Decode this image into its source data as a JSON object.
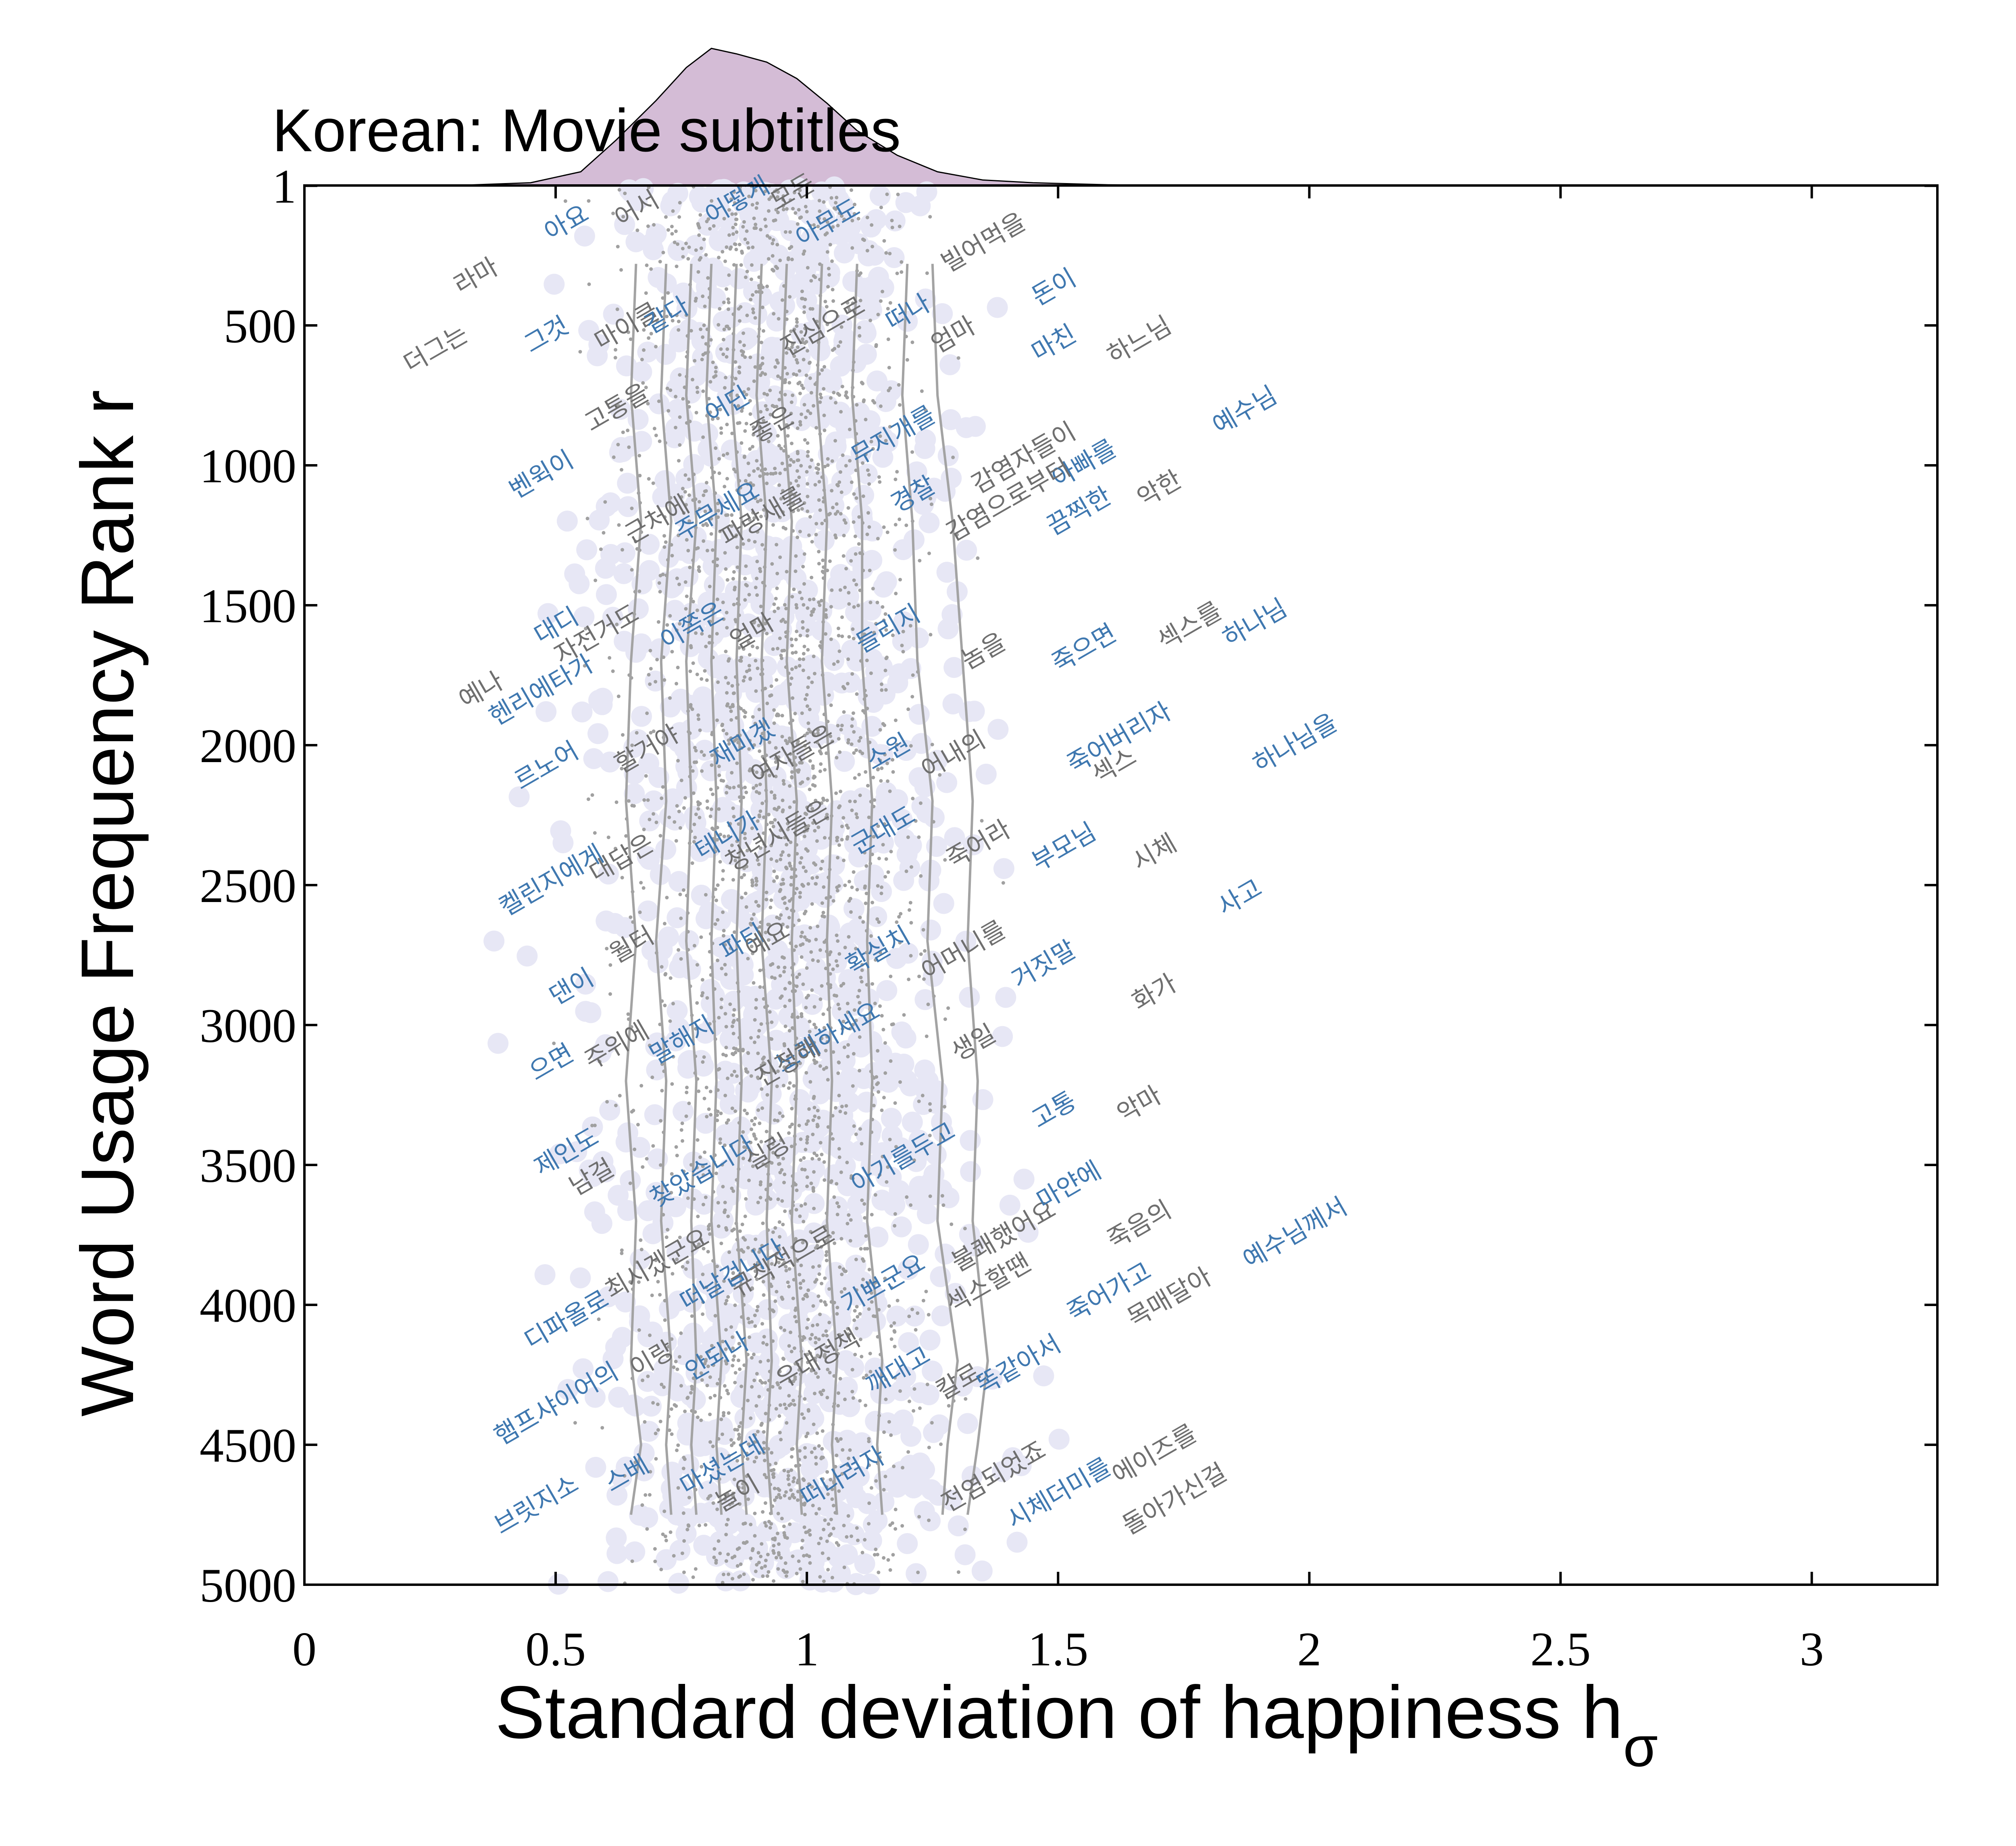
{
  "chart_data": {
    "type": "scatter",
    "title": "Korean: Movie subtitles",
    "xlabel": "Standard deviation of happiness h",
    "xlabel_subscript": "σ",
    "ylabel": "Word Usage Frequency Rank r",
    "xlim": [
      0,
      3.25
    ],
    "ylim": [
      0,
      5000
    ],
    "y_inverted": true,
    "x_ticks": [
      0,
      0.5,
      1,
      1.5,
      2,
      2.5,
      3
    ],
    "x_tick_labels": [
      "0",
      "0.5",
      "1",
      "1.5",
      "2",
      "2.5",
      "3"
    ],
    "y_ticks": [
      1,
      500,
      1000,
      1500,
      2000,
      2500,
      3000,
      3500,
      4000,
      4500,
      5000
    ],
    "y_tick_labels": [
      "1",
      "500",
      "1000",
      "1500",
      "2000",
      "2500",
      "3000",
      "3500",
      "4000",
      "4500",
      "5000"
    ],
    "grid": false,
    "colors": {
      "word_blue": "#3f78b0",
      "word_gray": "#6f6f6f",
      "halo": "#e7e7f5",
      "dot": "#a0a0a0",
      "contour": "#a3a3a3",
      "kde_fill": "#d4bcd6",
      "axis": "#000000"
    },
    "marginal_distribution": {
      "x": [
        0.3,
        0.45,
        0.55,
        0.62,
        0.7,
        0.76,
        0.81,
        0.86,
        0.92,
        0.98,
        1.04,
        1.1,
        1.18,
        1.26,
        1.35,
        1.45,
        1.6,
        1.8
      ],
      "density": [
        0.0,
        0.02,
        0.1,
        0.33,
        0.62,
        0.86,
        1.0,
        0.96,
        0.9,
        0.78,
        0.6,
        0.4,
        0.22,
        0.1,
        0.04,
        0.02,
        0.005,
        0.0
      ]
    },
    "contours": [
      {
        "x": [
          0.66,
          0.65,
          0.67,
          0.65,
          0.64,
          0.66,
          0.64,
          0.66,
          0.65,
          0.67,
          0.65
        ],
        "r": [
          280,
          750,
          1200,
          1700,
          2200,
          2700,
          3200,
          3700,
          4200,
          4500,
          4750
        ]
      },
      {
        "x": [
          0.72,
          0.71,
          0.73,
          0.71,
          0.72,
          0.7,
          0.72,
          0.71,
          0.73,
          0.72,
          0.73
        ],
        "r": [
          280,
          750,
          1200,
          1700,
          2200,
          2700,
          3200,
          3700,
          4200,
          4500,
          4750
        ]
      },
      {
        "x": [
          0.77,
          0.76,
          0.78,
          0.76,
          0.77,
          0.76,
          0.78,
          0.77,
          0.78,
          0.77,
          0.78
        ],
        "r": [
          280,
          750,
          1200,
          1700,
          2200,
          2700,
          3200,
          3700,
          4200,
          4500,
          4750
        ]
      },
      {
        "x": [
          0.81,
          0.8,
          0.82,
          0.81,
          0.82,
          0.81,
          0.82,
          0.81,
          0.83,
          0.82,
          0.83
        ],
        "r": [
          280,
          750,
          1200,
          1700,
          2200,
          2700,
          3200,
          3700,
          4200,
          4500,
          4750
        ]
      },
      {
        "x": [
          0.86,
          0.85,
          0.87,
          0.86,
          0.87,
          0.86,
          0.87,
          0.86,
          0.88,
          0.87,
          0.88
        ],
        "r": [
          280,
          750,
          1200,
          1700,
          2200,
          2700,
          3200,
          3700,
          4200,
          4500,
          4750
        ]
      },
      {
        "x": [
          0.91,
          0.9,
          0.92,
          0.91,
          0.92,
          0.91,
          0.93,
          0.92,
          0.93,
          0.92,
          0.93
        ],
        "r": [
          280,
          750,
          1200,
          1700,
          2200,
          2700,
          3200,
          3700,
          4200,
          4500,
          4750
        ]
      },
      {
        "x": [
          0.96,
          0.95,
          0.97,
          0.96,
          0.98,
          0.97,
          0.98,
          0.97,
          0.99,
          0.98,
          0.99
        ],
        "r": [
          280,
          750,
          1200,
          1700,
          2200,
          2700,
          3200,
          3700,
          4200,
          4500,
          4750
        ]
      },
      {
        "x": [
          1.03,
          1.02,
          1.04,
          1.03,
          1.05,
          1.04,
          1.05,
          1.04,
          1.06,
          1.05,
          1.06
        ],
        "r": [
          280,
          750,
          1200,
          1700,
          2200,
          2700,
          3200,
          3700,
          4200,
          4500,
          4750
        ]
      },
      {
        "x": [
          1.1,
          1.09,
          1.11,
          1.11,
          1.13,
          1.12,
          1.13,
          1.12,
          1.15,
          1.14,
          1.15
        ],
        "r": [
          280,
          750,
          1200,
          1700,
          2200,
          2700,
          3200,
          3700,
          4200,
          4500,
          4750
        ]
      },
      {
        "x": [
          1.2,
          1.19,
          1.21,
          1.22,
          1.25,
          1.24,
          1.27,
          1.26,
          1.3,
          1.28,
          1.27
        ],
        "r": [
          280,
          750,
          1200,
          1700,
          2200,
          2700,
          3200,
          3700,
          4200,
          4500,
          4750
        ]
      },
      {
        "x": [
          1.25,
          1.26,
          1.29,
          1.31,
          1.33,
          1.32,
          1.34,
          1.33,
          1.36,
          1.34,
          1.32
        ],
        "r": [
          280,
          750,
          1200,
          1700,
          2200,
          2700,
          3200,
          3700,
          4200,
          4500,
          4750
        ]
      }
    ],
    "words": [
      {
        "text": "아요",
        "x": 0.53,
        "r": 160,
        "color": "blue"
      },
      {
        "text": "어서",
        "x": 0.67,
        "r": 110,
        "color": "gray"
      },
      {
        "text": "어떻게",
        "x": 0.87,
        "r": 80,
        "color": "blue"
      },
      {
        "text": "모든",
        "x": 0.98,
        "r": 50,
        "color": "gray"
      },
      {
        "text": "아무도",
        "x": 1.05,
        "r": 160,
        "color": "blue"
      },
      {
        "text": "빌어먹을",
        "x": 1.36,
        "r": 230,
        "color": "gray"
      },
      {
        "text": "라마",
        "x": 0.35,
        "r": 350,
        "color": "gray"
      },
      {
        "text": "돈이",
        "x": 1.5,
        "r": 390,
        "color": "blue"
      },
      {
        "text": "더그는",
        "x": 0.27,
        "r": 610,
        "color": "gray"
      },
      {
        "text": "그것",
        "x": 0.49,
        "r": 560,
        "color": "blue"
      },
      {
        "text": "마이클",
        "x": 0.65,
        "r": 530,
        "color": "gray"
      },
      {
        "text": "같다",
        "x": 0.73,
        "r": 490,
        "color": "blue"
      },
      {
        "text": "진심으로",
        "x": 1.04,
        "r": 530,
        "color": "gray"
      },
      {
        "text": "떠나",
        "x": 1.21,
        "r": 480,
        "color": "blue"
      },
      {
        "text": "엄마",
        "x": 1.3,
        "r": 560,
        "color": "gray"
      },
      {
        "text": "마친",
        "x": 1.5,
        "r": 590,
        "color": "blue"
      },
      {
        "text": "하느님",
        "x": 1.67,
        "r": 580,
        "color": "gray"
      },
      {
        "text": "예수님",
        "x": 1.88,
        "r": 830,
        "color": "blue"
      },
      {
        "text": "고통을",
        "x": 0.63,
        "r": 820,
        "color": "gray"
      },
      {
        "text": "어딘",
        "x": 0.85,
        "r": 810,
        "color": "blue"
      },
      {
        "text": "좋은",
        "x": 0.94,
        "r": 880,
        "color": "gray"
      },
      {
        "text": "무지개를",
        "x": 1.18,
        "r": 920,
        "color": "blue"
      },
      {
        "text": "감염자들이",
        "x": 1.44,
        "r": 1000,
        "color": "gray"
      },
      {
        "text": "아빠를",
        "x": 1.56,
        "r": 1020,
        "color": "blue"
      },
      {
        "text": "벤윅이",
        "x": 0.48,
        "r": 1060,
        "color": "blue"
      },
      {
        "text": "경찰",
        "x": 1.22,
        "r": 1130,
        "color": "blue"
      },
      {
        "text": "감염으로부터",
        "x": 1.41,
        "r": 1150,
        "color": "gray"
      },
      {
        "text": "끔찍한",
        "x": 1.55,
        "r": 1190,
        "color": "blue"
      },
      {
        "text": "악한",
        "x": 1.71,
        "r": 1110,
        "color": "gray"
      },
      {
        "text": "근처에",
        "x": 0.71,
        "r": 1220,
        "color": "gray"
      },
      {
        "text": "주무세요",
        "x": 0.83,
        "r": 1190,
        "color": "blue"
      },
      {
        "text": "파랑새를",
        "x": 0.92,
        "r": 1210,
        "color": "gray"
      },
      {
        "text": "대디",
        "x": 0.51,
        "r": 1600,
        "color": "blue"
      },
      {
        "text": "자전거도",
        "x": 0.59,
        "r": 1630,
        "color": "gray"
      },
      {
        "text": "이쪽은",
        "x": 0.78,
        "r": 1600,
        "color": "blue"
      },
      {
        "text": "얼마",
        "x": 0.9,
        "r": 1620,
        "color": "gray"
      },
      {
        "text": "들리지",
        "x": 1.17,
        "r": 1610,
        "color": "blue"
      },
      {
        "text": "놈을",
        "x": 1.36,
        "r": 1690,
        "color": "gray"
      },
      {
        "text": "죽으면",
        "x": 1.56,
        "r": 1680,
        "color": "blue"
      },
      {
        "text": "섹스를",
        "x": 1.77,
        "r": 1600,
        "color": "gray"
      },
      {
        "text": "하나님",
        "x": 1.9,
        "r": 1590,
        "color": "blue"
      },
      {
        "text": "예나",
        "x": 0.36,
        "r": 1830,
        "color": "gray"
      },
      {
        "text": "헨리에타가",
        "x": 0.48,
        "r": 1830,
        "color": "blue"
      },
      {
        "text": "할거야",
        "x": 0.69,
        "r": 2040,
        "color": "gray"
      },
      {
        "text": "재미겠",
        "x": 0.88,
        "r": 2020,
        "color": "blue"
      },
      {
        "text": "여자들은",
        "x": 0.98,
        "r": 2060,
        "color": "gray"
      },
      {
        "text": "소원",
        "x": 1.17,
        "r": 2050,
        "color": "blue"
      },
      {
        "text": "어내의",
        "x": 1.3,
        "r": 2060,
        "color": "gray"
      },
      {
        "text": "죽어버리자",
        "x": 1.63,
        "r": 2000,
        "color": "blue"
      },
      {
        "text": "섹스",
        "x": 1.62,
        "r": 2100,
        "color": "gray"
      },
      {
        "text": "하나님을",
        "x": 1.98,
        "r": 2020,
        "color": "blue"
      },
      {
        "text": "르노어",
        "x": 0.49,
        "r": 2100,
        "color": "blue"
      },
      {
        "text": "테니가",
        "x": 0.85,
        "r": 2350,
        "color": "blue"
      },
      {
        "text": "청년시들은",
        "x": 0.95,
        "r": 2350,
        "color": "gray"
      },
      {
        "text": "군대도",
        "x": 1.16,
        "r": 2330,
        "color": "blue"
      },
      {
        "text": "죽어라",
        "x": 1.35,
        "r": 2380,
        "color": "gray"
      },
      {
        "text": "부모님",
        "x": 1.52,
        "r": 2390,
        "color": "blue"
      },
      {
        "text": "시체",
        "x": 1.7,
        "r": 2410,
        "color": "gray"
      },
      {
        "text": "켈린지에게",
        "x": 0.5,
        "r": 2510,
        "color": "blue"
      },
      {
        "text": "대답은",
        "x": 0.64,
        "r": 2430,
        "color": "gray"
      },
      {
        "text": "사고",
        "x": 1.87,
        "r": 2570,
        "color": "blue"
      },
      {
        "text": "월터",
        "x": 0.66,
        "r": 2740,
        "color": "gray"
      },
      {
        "text": "파티",
        "x": 0.88,
        "r": 2730,
        "color": "blue"
      },
      {
        "text": "예요",
        "x": 0.93,
        "r": 2720,
        "color": "gray"
      },
      {
        "text": "확실치",
        "x": 1.15,
        "r": 2760,
        "color": "blue"
      },
      {
        "text": "어머니를",
        "x": 1.32,
        "r": 2760,
        "color": "gray"
      },
      {
        "text": "거짓말",
        "x": 1.48,
        "r": 2810,
        "color": "blue"
      },
      {
        "text": "댄이",
        "x": 0.54,
        "r": 2890,
        "color": "blue"
      },
      {
        "text": "화가",
        "x": 1.7,
        "r": 2910,
        "color": "gray"
      },
      {
        "text": "으면",
        "x": 0.5,
        "r": 3160,
        "color": "blue"
      },
      {
        "text": "주위에",
        "x": 0.63,
        "r": 3100,
        "color": "gray"
      },
      {
        "text": "말해지",
        "x": 0.76,
        "r": 3080,
        "color": "blue"
      },
      {
        "text": "노래하세요",
        "x": 1.05,
        "r": 3070,
        "color": "blue"
      },
      {
        "text": "진정해",
        "x": 0.97,
        "r": 3160,
        "color": "gray"
      },
      {
        "text": "생일",
        "x": 1.34,
        "r": 3090,
        "color": "gray"
      },
      {
        "text": "고통",
        "x": 1.5,
        "r": 3330,
        "color": "blue"
      },
      {
        "text": "악마",
        "x": 1.67,
        "r": 3310,
        "color": "gray"
      },
      {
        "text": "제인도",
        "x": 0.53,
        "r": 3480,
        "color": "blue"
      },
      {
        "text": "남걸",
        "x": 0.58,
        "r": 3570,
        "color": "gray"
      },
      {
        "text": "찾았습니다",
        "x": 0.8,
        "r": 3550,
        "color": "blue"
      },
      {
        "text": "실링",
        "x": 0.93,
        "r": 3480,
        "color": "gray"
      },
      {
        "text": "아기를두고",
        "x": 1.2,
        "r": 3500,
        "color": "blue"
      },
      {
        "text": "불쾌했어요",
        "x": 1.4,
        "r": 3780,
        "color": "gray"
      },
      {
        "text": "마얀에",
        "x": 1.53,
        "r": 3600,
        "color": "blue"
      },
      {
        "text": "죽음의",
        "x": 1.67,
        "r": 3740,
        "color": "gray"
      },
      {
        "text": "예수님께서",
        "x": 1.98,
        "r": 3770,
        "color": "blue"
      },
      {
        "text": "최시겠군요",
        "x": 0.71,
        "r": 3880,
        "color": "gray"
      },
      {
        "text": "떠날겁니다",
        "x": 0.86,
        "r": 3920,
        "color": "blue"
      },
      {
        "text": "규칙적으로",
        "x": 0.96,
        "r": 3870,
        "color": "gray"
      },
      {
        "text": "기쁘군요",
        "x": 1.16,
        "r": 3950,
        "color": "blue"
      },
      {
        "text": "섹스할땐",
        "x": 1.37,
        "r": 3950,
        "color": "gray"
      },
      {
        "text": "죽어가고",
        "x": 1.61,
        "r": 3980,
        "color": "blue"
      },
      {
        "text": "목매달아",
        "x": 1.73,
        "r": 4000,
        "color": "gray"
      },
      {
        "text": "디파올로",
        "x": 0.53,
        "r": 4080,
        "color": "blue"
      },
      {
        "text": "이랑",
        "x": 0.7,
        "r": 4220,
        "color": "gray"
      },
      {
        "text": "안되나",
        "x": 0.83,
        "r": 4210,
        "color": "blue"
      },
      {
        "text": "우대정책",
        "x": 1.03,
        "r": 4220,
        "color": "gray"
      },
      {
        "text": "깨대고",
        "x": 1.19,
        "r": 4260,
        "color": "blue"
      },
      {
        "text": "칼로",
        "x": 1.31,
        "r": 4300,
        "color": "gray"
      },
      {
        "text": "똑같아서",
        "x": 1.43,
        "r": 4240,
        "color": "blue"
      },
      {
        "text": "햄프샤이어의",
        "x": 0.51,
        "r": 4380,
        "color": "blue"
      },
      {
        "text": "마셨는데",
        "x": 0.84,
        "r": 4600,
        "color": "blue"
      },
      {
        "text": "떠나려자",
        "x": 1.08,
        "r": 4640,
        "color": "blue"
      },
      {
        "text": "전염되었죠",
        "x": 1.38,
        "r": 4640,
        "color": "gray"
      },
      {
        "text": "시체더미를",
        "x": 1.51,
        "r": 4700,
        "color": "blue"
      },
      {
        "text": "에이즈를",
        "x": 1.7,
        "r": 4560,
        "color": "gray"
      },
      {
        "text": "돌아가신걸",
        "x": 1.74,
        "r": 4720,
        "color": "gray"
      },
      {
        "text": "브릿지소",
        "x": 0.47,
        "r": 4740,
        "color": "blue"
      },
      {
        "text": "스베",
        "x": 0.65,
        "r": 4630,
        "color": "blue"
      },
      {
        "text": "놀이",
        "x": 0.87,
        "r": 4700,
        "color": "gray"
      }
    ]
  }
}
